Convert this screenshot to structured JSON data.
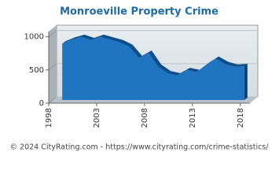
{
  "chart_data": {
    "type": "area",
    "title": "Monroeville Property Crime",
    "x": [
      1999,
      2000,
      2001,
      2002,
      2003,
      2004,
      2005,
      2006,
      2007,
      2008,
      2009,
      2010,
      2011,
      2012,
      2013,
      2014,
      2015,
      2016,
      2017,
      2018
    ],
    "series": [
      {
        "color": "#1f74bf",
        "values": [
          850,
          910,
          950,
          900,
          950,
          910,
          870,
          800,
          630,
          710,
          500,
          400,
          370,
          450,
          420,
          530,
          620,
          540,
          500,
          510
        ]
      }
    ],
    "xlim": [
      1998,
      2019
    ],
    "xticks": [
      1998,
      2003,
      2008,
      2013,
      2018
    ],
    "ylim": [
      0,
      1080
    ],
    "yticks": [
      0,
      500,
      1000
    ],
    "grid": true,
    "footer": "© 2024 CityRating.com - https://www.cityrating.com/crime-statistics/"
  }
}
